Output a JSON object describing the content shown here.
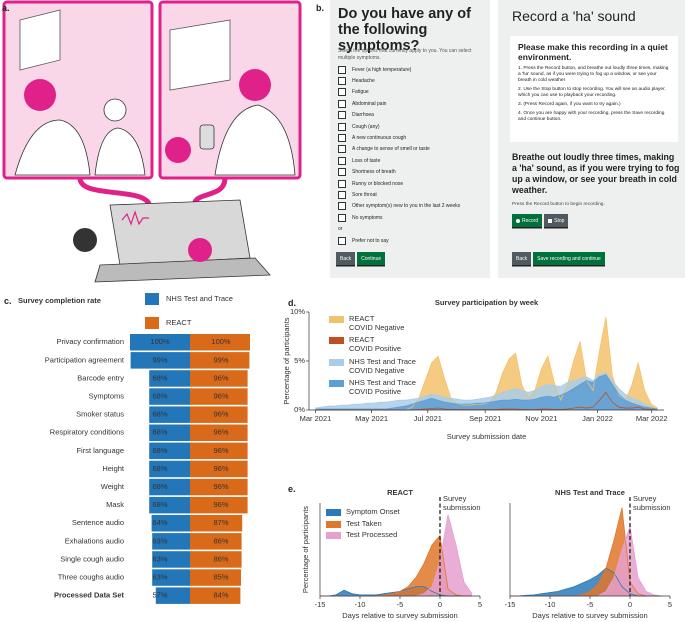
{
  "panel_labels": [
    "a.",
    "b.",
    "c.",
    "d.",
    "e."
  ],
  "symptom_screen": {
    "title": "Do you have any of the following symptoms?",
    "instructions": "Select the options that currently apply to you. You can select multiple symptoms.",
    "options": [
      "Fever (a high temperature)",
      "Headache",
      "Fatigue",
      "Abdominal pain",
      "Diarrhoea",
      "Cough (any)",
      "A new continuous cough",
      "A change to sense of smell or taste",
      "Loss of taste",
      "Shortness of breath",
      "Runny or blocked nose",
      "Sore throat",
      "Other symptom(s) new to you in the last 2 weeks",
      "No symptoms"
    ],
    "separator": "or",
    "prefer_not": "Prefer not to say",
    "buttons": [
      "Back",
      "Continue"
    ]
  },
  "recording_screen": {
    "title": "Record a 'ha' sound",
    "box_heading": "Please make this recording in a quiet environment.",
    "steps": [
      "1. Press the Record button, and breathe out loudly three times, making a 'ha' sound, as if you were trying to fog up a window, or see your breath in cold weather",
      "2. Use the Stop button to stop recording. You will see an audio player, which you can use to playback your recording.",
      "3. (Press Record again, if you want to try again.)",
      "4. Once you are happy with your recording, press the Save recording and continue button."
    ],
    "prompt": "Breathe out loudly three times, making a 'ha' sound, as if you were trying to fog up a window, or see your breath in cold weather.",
    "hint": "Press the Record button to begin recording.",
    "record_buttons": [
      "Record",
      "Stop"
    ],
    "buttons": [
      "Back",
      "Save recording and continue"
    ]
  },
  "chart_data": [
    {
      "type": "funnel",
      "title": "Survey completion rate",
      "categories": [
        "Privacy confirmation",
        "Participation agreement",
        "Barcode entry",
        "Symptoms",
        "Smoker status",
        "Respiratory conditions",
        "First language",
        "Height",
        "Weight",
        "Mask",
        "Sentence audio",
        "Exhalations audio",
        "Single cough audio",
        "Three coughs audio",
        "Processed Data Set"
      ],
      "series": [
        {
          "name": "NHS Test and Trace",
          "color": "#2376b7",
          "values": [
            100,
            99,
            68,
            68,
            68,
            68,
            68,
            68,
            68,
            68,
            64,
            63,
            63,
            63,
            57
          ],
          "value_labels": [
            "100%",
            "99%",
            "68%",
            "68%",
            "68%",
            "68%",
            "68%",
            "68%",
            "68%",
            "68%",
            "64%",
            "63%",
            "63%",
            "63%",
            "57%"
          ]
        },
        {
          "name": "REACT",
          "color": "#d96a19",
          "values": [
            100,
            99,
            96,
            96,
            96,
            96,
            96,
            96,
            96,
            96,
            87,
            86,
            86,
            85,
            84
          ],
          "value_labels": [
            "100%",
            "99%",
            "96%",
            "96%",
            "96%",
            "96%",
            "96%",
            "96%",
            "96%",
            "96%",
            "87%",
            "86%",
            "86%",
            "85%",
            "84%"
          ]
        }
      ]
    },
    {
      "type": "area",
      "title": "Survey participation by week",
      "xlabel": "Survey submission date",
      "ylabel": "Percentage of participants",
      "x": [
        0,
        1,
        2,
        3,
        4,
        5,
        6,
        7,
        8,
        9,
        10,
        11,
        12,
        13,
        14,
        15,
        16,
        17,
        18,
        19,
        20,
        21,
        22,
        23,
        24,
        25,
        26,
        27,
        28,
        29,
        30,
        31,
        32,
        33,
        34,
        35,
        36,
        37,
        38,
        39,
        40,
        41,
        42,
        43,
        44,
        45,
        46,
        47,
        48,
        49,
        50,
        51,
        52,
        53
      ],
      "xlim": [
        -1,
        54
      ],
      "ylim": [
        0,
        10
      ],
      "xticks": [
        {
          "value": 0,
          "label": "Mar 2021"
        },
        {
          "value": 8.7,
          "label": "May 2021"
        },
        {
          "value": 17.4,
          "label": "Jul 2021"
        },
        {
          "value": 26.3,
          "label": "Sep 2021"
        },
        {
          "value": 35.0,
          "label": "Nov 2021"
        },
        {
          "value": 43.7,
          "label": "Jan 2022"
        },
        {
          "value": 52.1,
          "label": "Mar 2022"
        }
      ],
      "yticks": [
        {
          "value": 0,
          "label": "0%"
        },
        {
          "value": 5,
          "label": "5%"
        },
        {
          "value": 10,
          "label": "10%"
        }
      ],
      "legend": "upper left",
      "series": [
        {
          "name": "REACT\nCOVID Negative",
          "color": "#f2c26b",
          "values": [
            0,
            0,
            0,
            0,
            0,
            0,
            0,
            0,
            0,
            0,
            0,
            0,
            0,
            0,
            0,
            0.3,
            1.2,
            3.0,
            4.8,
            5.5,
            3.2,
            1.2,
            0.6,
            0.5,
            0.5,
            0.6,
            0.6,
            0.8,
            1.8,
            3.8,
            5.2,
            5.8,
            2.5,
            1.2,
            2.0,
            4.2,
            5.5,
            2.8,
            1.0,
            2.5,
            5.0,
            7.0,
            3.0,
            2.0,
            6.0,
            9.5,
            3.5,
            1.5,
            1.0,
            2.5,
            4.8,
            2.0,
            0.6,
            0.2
          ]
        },
        {
          "name": "REACT\nCOVID Positive",
          "color": "#c0501f",
          "values": [
            0,
            0,
            0,
            0,
            0,
            0,
            0,
            0,
            0,
            0,
            0,
            0,
            0,
            0,
            0,
            0,
            0.05,
            0.1,
            0.15,
            0.2,
            0.1,
            0.05,
            0.05,
            0.05,
            0.05,
            0.05,
            0.05,
            0.05,
            0.05,
            0.1,
            0.1,
            0.1,
            0.05,
            0.05,
            0.05,
            0.1,
            0.1,
            0.05,
            0.05,
            0.1,
            0.2,
            0.3,
            0.2,
            0.3,
            1.0,
            1.8,
            0.8,
            0.3,
            0.2,
            0.2,
            0.3,
            0.1,
            0.05,
            0
          ]
        },
        {
          "name": "NHS Test and Trace\nCOVID Negative",
          "color": "#a9cde9",
          "values": [
            0.2,
            0.3,
            0.4,
            0.4,
            0.5,
            0.5,
            0.6,
            0.6,
            0.7,
            0.7,
            0.8,
            0.8,
            0.9,
            1.0,
            1.0,
            1.1,
            1.2,
            1.4,
            1.6,
            1.5,
            1.3,
            1.2,
            1.1,
            1.0,
            1.0,
            1.1,
            1.2,
            1.3,
            1.5,
            1.8,
            2.0,
            2.2,
            2.0,
            1.8,
            2.0,
            2.4,
            2.6,
            2.5,
            2.4,
            2.8,
            3.0,
            3.2,
            3.4,
            3.0,
            3.6,
            3.8,
            3.0,
            2.2,
            1.6,
            1.2,
            1.0,
            0.6,
            0.3,
            0.1
          ]
        },
        {
          "name": "NHS Test and Trace\nCOVID Positive",
          "color": "#5d9ed3",
          "values": [
            0.1,
            0.1,
            0.1,
            0.1,
            0.1,
            0.1,
            0.1,
            0.1,
            0.1,
            0.1,
            0.1,
            0.1,
            0.2,
            0.3,
            0.4,
            0.6,
            0.8,
            1.0,
            1.2,
            1.0,
            0.8,
            0.7,
            0.6,
            0.6,
            0.6,
            0.7,
            0.7,
            0.8,
            0.9,
            1.0,
            1.0,
            1.1,
            1.0,
            1.0,
            1.1,
            1.3,
            1.4,
            1.3,
            1.5,
            1.8,
            2.2,
            2.6,
            3.0,
            2.8,
            3.4,
            3.6,
            2.6,
            1.6,
            1.0,
            0.7,
            0.5,
            0.3,
            0.2,
            0.1
          ]
        }
      ]
    },
    {
      "type": "area",
      "title": "REACT",
      "xlabel": "Days relative to survey submission",
      "ylabel": "Percentage of participants",
      "x": [
        -15,
        -14,
        -13,
        -12,
        -11,
        -10,
        -9,
        -8,
        -7,
        -6,
        -5,
        -4,
        -3,
        -2,
        -1,
        0,
        1,
        2,
        3,
        4
      ],
      "xlim": [
        -15,
        5
      ],
      "ylim": [
        0,
        40
      ],
      "xticks": [
        -15,
        -10,
        -5,
        0,
        5
      ],
      "legend": "upper left",
      "annotation": {
        "text": "Survey\nsubmission",
        "x": 0
      },
      "series": [
        {
          "name": "Symptom Onset",
          "color": "#2a7ab9",
          "values": [
            0,
            0,
            0.5,
            2.5,
            1,
            0.5,
            0.5,
            0.5,
            1,
            1.5,
            2,
            3,
            4,
            4,
            2,
            0.5,
            0,
            0,
            0,
            0
          ]
        },
        {
          "name": "Test Taken",
          "color": "#e0772a",
          "values": [
            0,
            0,
            0,
            0,
            0,
            0,
            0,
            0,
            0.5,
            1,
            2,
            4,
            8,
            14,
            22,
            26,
            3,
            0.5,
            0,
            0
          ]
        },
        {
          "name": "Test Processed",
          "color": "#e6a0cf",
          "values": [
            0,
            0,
            0,
            0,
            0,
            0,
            0,
            0,
            0,
            0,
            0,
            0,
            0,
            1,
            4,
            15,
            35,
            22,
            6,
            1
          ]
        }
      ]
    },
    {
      "type": "area",
      "title": "NHS Test and Trace",
      "xlabel": "Days relative to survey submission",
      "x": [
        -15,
        -14,
        -13,
        -12,
        -11,
        -10,
        -9,
        -8,
        -7,
        -6,
        -5,
        -4,
        -3,
        -2,
        -1,
        0,
        1,
        2,
        3,
        4
      ],
      "xlim": [
        -15,
        5
      ],
      "ylim": [
        0,
        40
      ],
      "xticks": [
        -15,
        -10,
        -5,
        0,
        5
      ],
      "annotation": {
        "text": "Survey\nsubmission",
        "x": 0
      },
      "series": [
        {
          "color": "#2a7ab9",
          "values": [
            0,
            0,
            0.3,
            0.5,
            1,
            1.5,
            2,
            3,
            4,
            5.5,
            7,
            9,
            12,
            10,
            4,
            1,
            0,
            0,
            0,
            0
          ]
        },
        {
          "color": "#e0772a",
          "values": [
            0,
            0,
            0,
            0,
            0,
            0,
            0,
            0,
            0,
            0.5,
            2,
            5,
            12,
            24,
            38,
            6,
            1,
            0,
            0,
            0
          ]
        },
        {
          "color": "#e6a0cf",
          "values": [
            0,
            0,
            0,
            0,
            0,
            0,
            0,
            0,
            0,
            0,
            0,
            0,
            2,
            8,
            20,
            30,
            8,
            2,
            0.5,
            0
          ]
        }
      ]
    }
  ]
}
